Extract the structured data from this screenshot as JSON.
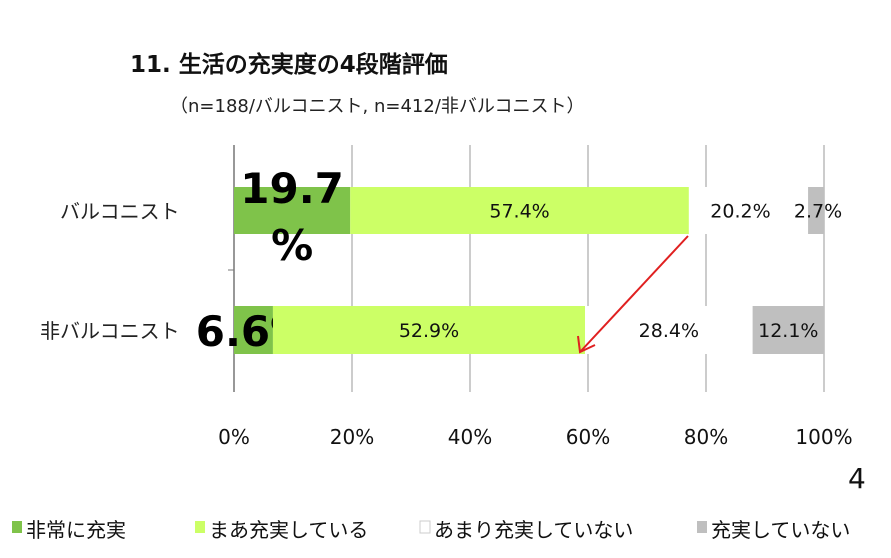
{
  "chart_data": {
    "type": "bar",
    "stacked": true,
    "orientation": "horizontal",
    "title": "11. 生活の充実度の4段階評価",
    "subtitle": "（n=188/バルコニスト, n=412/非バルコニスト）",
    "categories": [
      "バルコニスト",
      "非バルコニスト"
    ],
    "series": [
      {
        "name": "非常に充実",
        "color": "#7fc34a",
        "values": [
          19.7,
          6.6
        ],
        "labels": [
          "19.7%",
          "6.6%"
        ]
      },
      {
        "name": "まあ充実している",
        "color": "#ccff66",
        "values": [
          57.4,
          52.9
        ],
        "labels": [
          "57.4%",
          "52.9%"
        ]
      },
      {
        "name": "あまり充実していない",
        "color": "#ffffff",
        "values": [
          20.2,
          28.4
        ],
        "labels": [
          "20.2%",
          "28.4%"
        ]
      },
      {
        "name": "充実していない",
        "color": "#bfbfbf",
        "values": [
          2.7,
          12.1
        ],
        "labels": [
          "2.7%",
          "12.1%"
        ]
      }
    ],
    "xlim": [
      0,
      100
    ],
    "xticks": [
      "0%",
      "20%",
      "40%",
      "60%",
      "80%",
      "100%"
    ],
    "grid": true,
    "legend": "bottom",
    "page_number": "4"
  }
}
